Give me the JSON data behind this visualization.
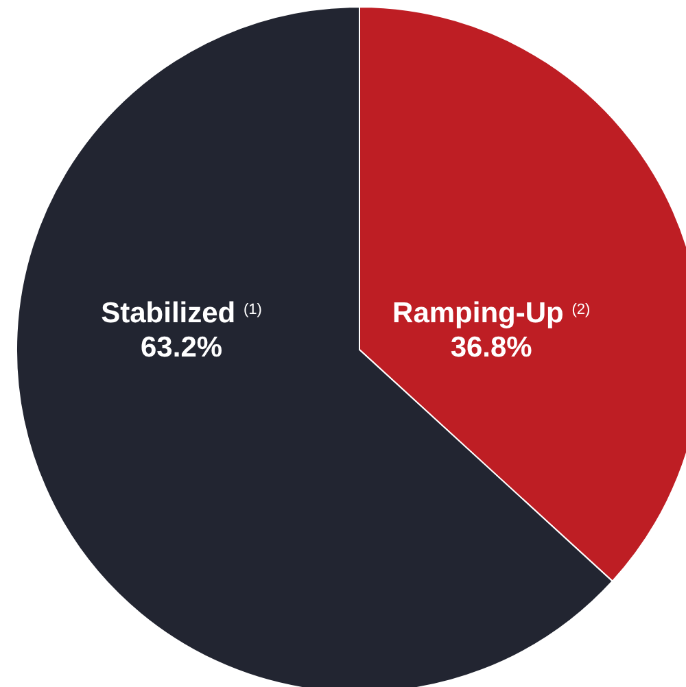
{
  "chart_data": {
    "type": "pie",
    "categories": [
      "Stabilized $^{(1)}$",
      "Ramping-Up $^{(2)}$"
    ],
    "values": [
      63.2,
      36.8
    ],
    "colors": [
      "#222531",
      "#be1e24"
    ],
    "value_labels": [
      "63.2%",
      "36.8%"
    ]
  }
}
